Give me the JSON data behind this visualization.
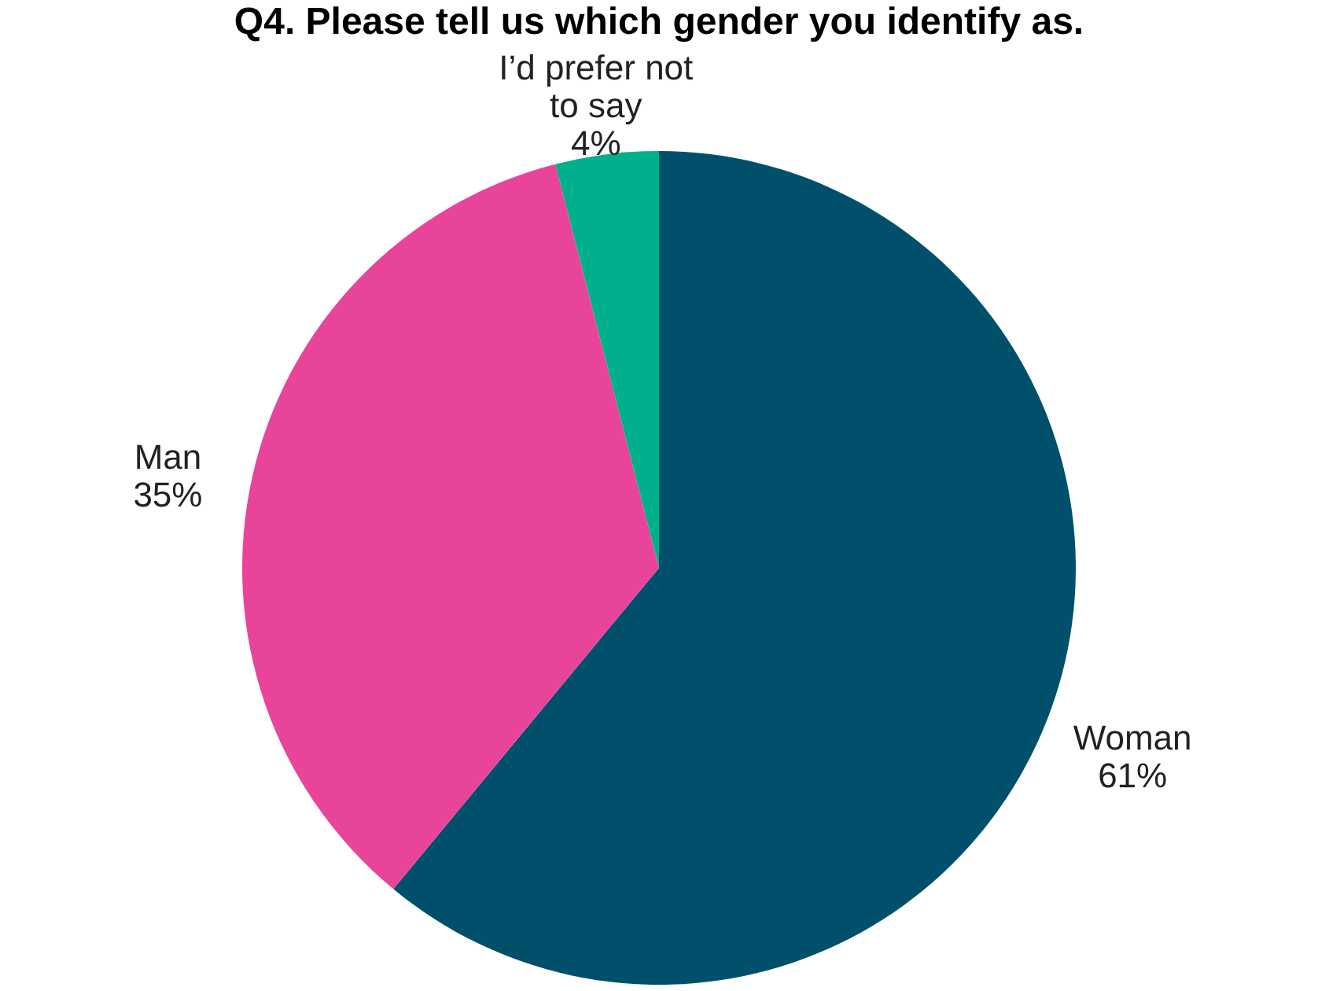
{
  "chart_data": {
    "type": "pie",
    "title": "Q4. Please tell us which gender you identify as.",
    "categories": [
      "Woman",
      "Man",
      "I’d prefer not to say"
    ],
    "values": [
      61,
      35,
      4
    ],
    "value_labels": [
      "61%",
      "35%",
      "4%"
    ],
    "colors": [
      "#00506b",
      "#e8459a",
      "#00b08c"
    ],
    "legend": false
  }
}
